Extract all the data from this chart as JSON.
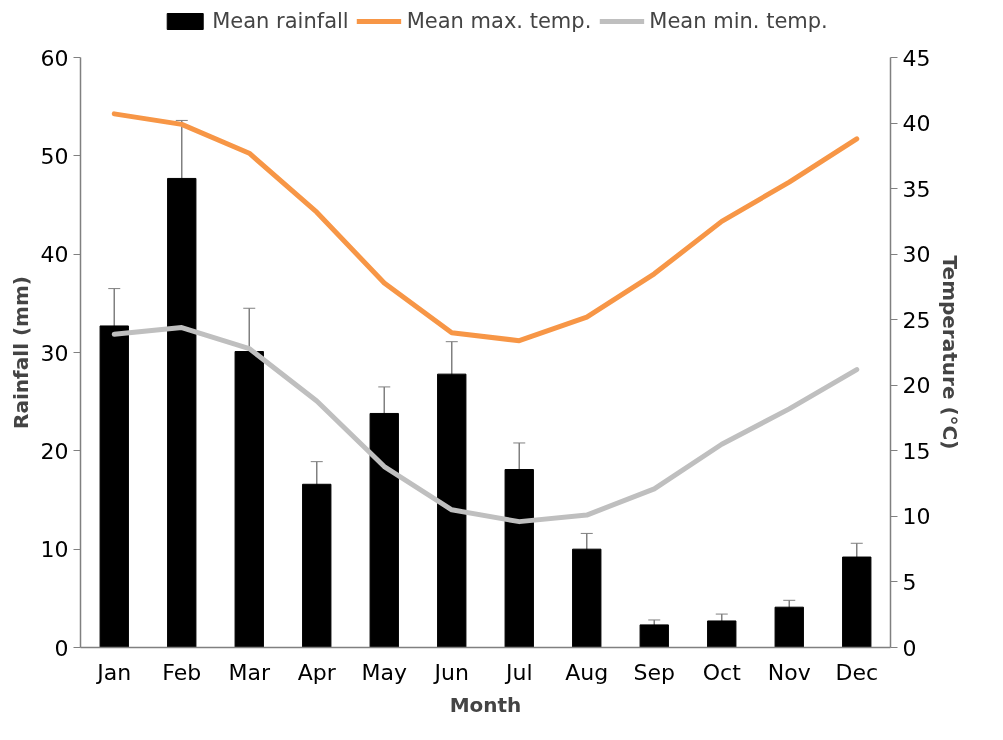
{
  "chart_data": {
    "type": "bar",
    "xlabel": "Month",
    "ylabel": "Rainfall (mm)",
    "y2label": "Temperature (°C)",
    "categories": [
      "Jan",
      "Feb",
      "Mar",
      "Apr",
      "May",
      "Jun",
      "Jul",
      "Aug",
      "Sep",
      "Oct",
      "Nov",
      "Dec"
    ],
    "series": [
      {
        "name": "Mean rainfall",
        "color": "#000000",
        "values": [
          32.7,
          47.7,
          30.1,
          16.6,
          23.8,
          27.8,
          18.1,
          10.0,
          2.3,
          2.7,
          4.1,
          9.2
        ],
        "errors": [
          3.8,
          5.9,
          4.4,
          2.3,
          2.7,
          3.3,
          2.7,
          1.6,
          0.5,
          0.7,
          0.7,
          1.4
        ]
      },
      {
        "name": "Mean max. temp.",
        "type": "line",
        "axis": "y2",
        "color": "#f79646",
        "values": [
          40.7,
          39.9,
          37.7,
          33.2,
          27.8,
          24.0,
          23.4,
          25.2,
          28.5,
          32.5,
          35.5,
          38.8
        ]
      },
      {
        "name": "Mean min. temp.",
        "type": "line",
        "axis": "y2",
        "color": "#bfbfbf",
        "values": [
          23.9,
          24.4,
          22.8,
          18.8,
          13.8,
          10.5,
          9.6,
          10.1,
          12.1,
          15.5,
          18.2,
          21.2
        ]
      }
    ],
    "ylim": [
      0,
      60
    ],
    "yticks": [
      0,
      10,
      20,
      30,
      40,
      50,
      60
    ],
    "y2lim": [
      0,
      45
    ],
    "y2ticks": [
      0,
      5,
      10,
      15,
      20,
      25,
      30,
      35,
      40,
      45
    ],
    "grid": false,
    "legend": "top",
    "line_style": "solid"
  }
}
